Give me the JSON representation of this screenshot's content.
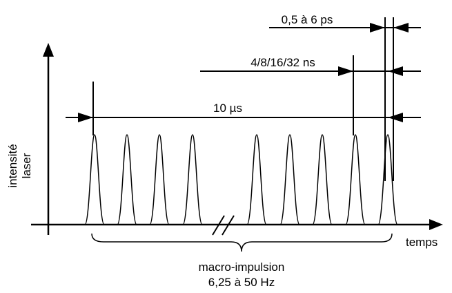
{
  "axis": {
    "y_label": [
      "intensité",
      "laser"
    ],
    "x_label": "temps"
  },
  "dimensions": {
    "macro_period": "10 µs",
    "micro_period": "4/8/16/32 ns",
    "pulse_width": "0,5 à 6 ps"
  },
  "brace": {
    "label": "macro-impulsion",
    "sublabel": "6,25 à 50 Hz"
  }
}
